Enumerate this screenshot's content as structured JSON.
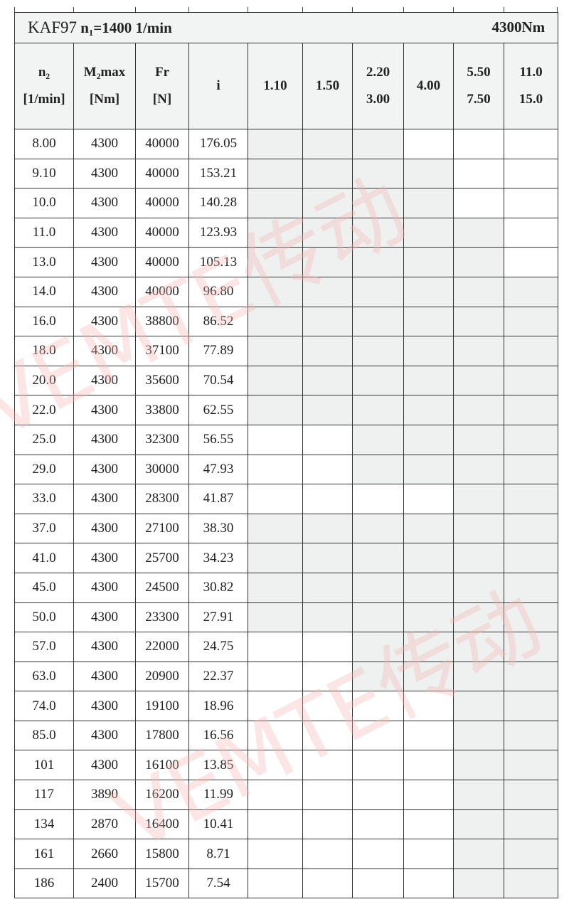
{
  "title": {
    "model": "KAF97",
    "input_speed": "n₁=1400 1/min",
    "torque": "4300Nm"
  },
  "headers": {
    "n2": [
      "n₂",
      "[1/min]"
    ],
    "m2max": [
      "M₂max",
      "[Nm]"
    ],
    "fr": [
      "Fr",
      "[N]"
    ],
    "i": "i",
    "power": [
      [
        "1.10"
      ],
      [
        "1.50"
      ],
      [
        "2.20",
        "3.00"
      ],
      [
        "4.00"
      ],
      [
        "5.50",
        "7.50"
      ],
      [
        "11.0",
        "15.0"
      ]
    ]
  },
  "shading_color": "#eff1f1",
  "watermark": "VEMTE传动",
  "rows": [
    {
      "n2": "8.00",
      "m2": "4300",
      "fr": "40000",
      "i": "176.05",
      "avail": [
        1,
        1,
        1,
        0,
        0,
        0
      ]
    },
    {
      "n2": "9.10",
      "m2": "4300",
      "fr": "40000",
      "i": "153.21",
      "avail": [
        1,
        1,
        1,
        1,
        0,
        0
      ]
    },
    {
      "n2": "10.0",
      "m2": "4300",
      "fr": "40000",
      "i": "140.28",
      "avail": [
        1,
        1,
        1,
        1,
        0,
        0
      ]
    },
    {
      "n2": "11.0",
      "m2": "4300",
      "fr": "40000",
      "i": "123.93",
      "avail": [
        1,
        1,
        1,
        1,
        1,
        0
      ]
    },
    {
      "n2": "13.0",
      "m2": "4300",
      "fr": "40000",
      "i": "105.13",
      "avail": [
        1,
        1,
        1,
        1,
        1,
        0
      ]
    },
    {
      "n2": "14.0",
      "m2": "4300",
      "fr": "40000",
      "i": "96.80",
      "avail": [
        1,
        1,
        1,
        1,
        1,
        1
      ]
    },
    {
      "n2": "16.0",
      "m2": "4300",
      "fr": "38800",
      "i": "86.52",
      "avail": [
        1,
        1,
        1,
        1,
        1,
        1
      ]
    },
    {
      "n2": "18.0",
      "m2": "4300",
      "fr": "37100",
      "i": "77.89",
      "avail": [
        1,
        1,
        1,
        1,
        1,
        1
      ]
    },
    {
      "n2": "20.0",
      "m2": "4300",
      "fr": "35600",
      "i": "70.54",
      "avail": [
        1,
        1,
        1,
        1,
        1,
        1
      ]
    },
    {
      "n2": "22.0",
      "m2": "4300",
      "fr": "33800",
      "i": "62.55",
      "avail": [
        1,
        1,
        1,
        1,
        1,
        1
      ]
    },
    {
      "n2": "25.0",
      "m2": "4300",
      "fr": "32300",
      "i": "56.55",
      "avail": [
        0,
        0,
        1,
        1,
        1,
        1
      ]
    },
    {
      "n2": "29.0",
      "m2": "4300",
      "fr": "30000",
      "i": "47.93",
      "avail": [
        0,
        0,
        1,
        1,
        1,
        1
      ]
    },
    {
      "n2": "33.0",
      "m2": "4300",
      "fr": "28300",
      "i": "41.87",
      "avail": [
        0,
        0,
        0,
        0,
        1,
        1
      ]
    },
    {
      "n2": "37.0",
      "m2": "4300",
      "fr": "27100",
      "i": "38.30",
      "avail": [
        1,
        1,
        1,
        1,
        1,
        1
      ]
    },
    {
      "n2": "41.0",
      "m2": "4300",
      "fr": "25700",
      "i": "34.23",
      "avail": [
        1,
        1,
        1,
        1,
        1,
        1
      ]
    },
    {
      "n2": "45.0",
      "m2": "4300",
      "fr": "24500",
      "i": "30.82",
      "avail": [
        1,
        1,
        1,
        1,
        1,
        1
      ]
    },
    {
      "n2": "50.0",
      "m2": "4300",
      "fr": "23300",
      "i": "27.91",
      "avail": [
        1,
        1,
        1,
        1,
        1,
        1
      ]
    },
    {
      "n2": "57.0",
      "m2": "4300",
      "fr": "22000",
      "i": "24.75",
      "avail": [
        0,
        0,
        1,
        1,
        1,
        1
      ]
    },
    {
      "n2": "63.0",
      "m2": "4300",
      "fr": "20900",
      "i": "22.37",
      "avail": [
        0,
        0,
        1,
        1,
        1,
        1
      ]
    },
    {
      "n2": "74.0",
      "m2": "4300",
      "fr": "19100",
      "i": "18.96",
      "avail": [
        0,
        0,
        0,
        0,
        1,
        1
      ]
    },
    {
      "n2": "85.0",
      "m2": "4300",
      "fr": "17800",
      "i": "16.56",
      "avail": [
        0,
        0,
        0,
        0,
        1,
        1
      ]
    },
    {
      "n2": "101",
      "m2": "4300",
      "fr": "16100",
      "i": "13.85",
      "avail": [
        0,
        0,
        0,
        0,
        1,
        1
      ]
    },
    {
      "n2": "117",
      "m2": "3890",
      "fr": "16200",
      "i": "11.99",
      "avail": [
        0,
        0,
        0,
        0,
        1,
        1
      ]
    },
    {
      "n2": "134",
      "m2": "2870",
      "fr": "16400",
      "i": "10.41",
      "avail": [
        0,
        0,
        0,
        0,
        1,
        1
      ]
    },
    {
      "n2": "161",
      "m2": "2660",
      "fr": "15800",
      "i": "8.71",
      "avail": [
        0,
        0,
        0,
        0,
        1,
        1
      ]
    },
    {
      "n2": "186",
      "m2": "2400",
      "fr": "15700",
      "i": "7.54",
      "avail": [
        0,
        0,
        0,
        0,
        1,
        1
      ]
    }
  ]
}
